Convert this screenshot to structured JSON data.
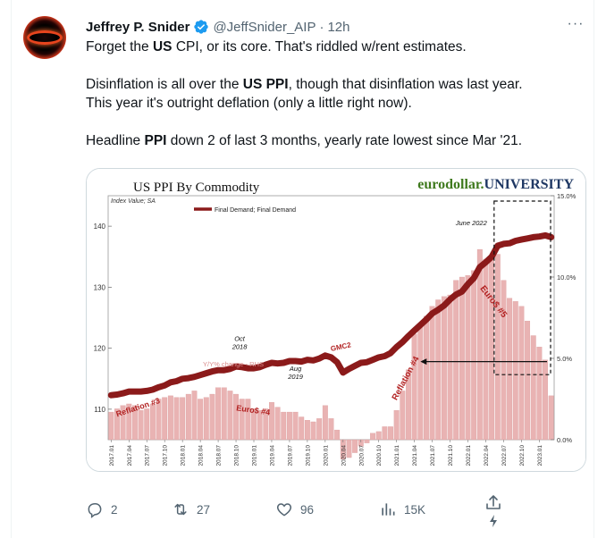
{
  "tweet": {
    "author_name": "Jeffrey P. Snider",
    "handle": "@JeffSnider_AIP",
    "separator": "·",
    "time": "12h",
    "more_label": "···",
    "para1": [
      "Forget the ",
      "US",
      " CPI, or its core. That's riddled w/rent estimates."
    ],
    "para2": [
      "Disinflation is all over the ",
      "US PPI",
      ", though that disinflation was last year.\nThis year it's outright deflation (only a little right now)."
    ],
    "para3": [
      "Headline ",
      "PPI",
      " down 2 of last 3 months, yearly rate lowest since Mar '21."
    ]
  },
  "actions": {
    "replies": "2",
    "retweets": "27",
    "likes": "96",
    "views": "15K"
  },
  "icons": {
    "verified": "verified-badge-icon",
    "reply": "reply-icon",
    "retweet": "retweet-icon",
    "like": "heart-icon",
    "views": "views-bar-chart-icon",
    "share": "share-icon",
    "boost": "lightning-icon",
    "more": "more-dots-icon"
  },
  "colors": {
    "verified_blue": "#1d9bf0",
    "line": "#8b1a1a",
    "bars": "#e9b3b3",
    "label_red": "#b22222",
    "brand_green": "#3f7a1e",
    "brand_navy": "#1f3864"
  },
  "chart_data": {
    "type": "bar",
    "title": "US PPI By Commodity",
    "brand_left": "eurodollar.",
    "brand_right": "UNIVERSITY",
    "y_left_label": "Index Value; SA",
    "left_ticks": [
      "110",
      "120",
      "130",
      "140"
    ],
    "right_ticks": [
      "0.0%",
      "5.0%",
      "10.0%",
      "15.0%"
    ],
    "left_ylim": [
      105,
      145
    ],
    "right_ylim": [
      0,
      15
    ],
    "grid": false,
    "legend_position": "top-left",
    "line_series_name": "Final Demand; Final Demand",
    "bar_series_name": "Y/Y% change - RHS",
    "x_ticks": [
      "2017.01",
      "2017.04",
      "2017.07",
      "2017.10",
      "2018.01",
      "2018.04",
      "2018.07",
      "2018.10",
      "2019.01",
      "2019.04",
      "2019.07",
      "2019.10",
      "2020.01",
      "2020.04",
      "2020.07",
      "2020.10",
      "2021.01",
      "2021.04",
      "2021.07",
      "2021.10",
      "2022.01",
      "2022.04",
      "2022.07",
      "2022.10",
      "2023.01"
    ],
    "x": [
      "2017.01",
      "2017.02",
      "2017.03",
      "2017.04",
      "2017.05",
      "2017.06",
      "2017.07",
      "2017.08",
      "2017.09",
      "2017.10",
      "2017.11",
      "2017.12",
      "2018.01",
      "2018.02",
      "2018.03",
      "2018.04",
      "2018.05",
      "2018.06",
      "2018.07",
      "2018.08",
      "2018.09",
      "2018.10",
      "2018.11",
      "2018.12",
      "2019.01",
      "2019.02",
      "2019.03",
      "2019.04",
      "2019.05",
      "2019.06",
      "2019.07",
      "2019.08",
      "2019.09",
      "2019.10",
      "2019.11",
      "2019.12",
      "2020.01",
      "2020.02",
      "2020.03",
      "2020.04",
      "2020.05",
      "2020.06",
      "2020.07",
      "2020.08",
      "2020.09",
      "2020.10",
      "2020.11",
      "2020.12",
      "2021.01",
      "2021.02",
      "2021.03",
      "2021.04",
      "2021.05",
      "2021.06",
      "2021.07",
      "2021.08",
      "2021.09",
      "2021.10",
      "2021.11",
      "2021.12",
      "2022.01",
      "2022.02",
      "2022.03",
      "2022.04",
      "2022.05",
      "2022.06",
      "2022.07",
      "2022.08",
      "2022.09",
      "2022.10",
      "2022.11",
      "2022.12",
      "2023.01",
      "2023.02",
      "2023.03"
    ],
    "index_values": [
      112.3,
      112.4,
      112.6,
      112.9,
      112.9,
      112.9,
      113.0,
      113.2,
      113.6,
      113.9,
      114.4,
      114.6,
      115.0,
      115.1,
      115.3,
      115.6,
      115.9,
      116.2,
      116.4,
      116.4,
      116.6,
      117.0,
      116.9,
      116.7,
      116.7,
      116.9,
      117.3,
      117.6,
      117.5,
      117.6,
      117.9,
      117.9,
      117.8,
      118.1,
      118.0,
      118.3,
      118.8,
      118.5,
      117.7,
      116.0,
      116.6,
      117.1,
      117.6,
      117.7,
      118.1,
      118.5,
      118.7,
      119.2,
      120.2,
      121.0,
      122.0,
      122.9,
      123.8,
      124.7,
      125.7,
      126.3,
      127.0,
      128.0,
      128.8,
      129.3,
      130.5,
      131.5,
      133.3,
      134.1,
      135.0,
      136.8,
      137.1,
      137.2,
      137.6,
      137.8,
      138.0,
      138.2,
      138.3,
      138.5,
      138.2
    ],
    "yoy_percent": [
      1.7,
      1.9,
      2.1,
      2.2,
      2.1,
      1.8,
      1.9,
      2.2,
      2.5,
      2.6,
      2.7,
      2.6,
      2.6,
      2.8,
      3.0,
      2.5,
      2.6,
      2.8,
      3.2,
      3.2,
      3.0,
      2.8,
      2.5,
      2.5,
      1.9,
      1.8,
      1.9,
      2.3,
      2.0,
      1.7,
      1.7,
      1.7,
      1.4,
      1.2,
      1.1,
      1.3,
      2.1,
      1.3,
      0.6,
      -1.2,
      -1.1,
      -0.8,
      -0.4,
      -0.2,
      0.4,
      0.5,
      0.8,
      0.8,
      1.8,
      3.0,
      4.3,
      6.5,
      7.0,
      7.6,
      8.2,
      8.6,
      8.8,
      8.9,
      9.8,
      10.0,
      10.1,
      10.4,
      11.7,
      11.1,
      11.1,
      11.4,
      9.8,
      8.7,
      8.5,
      8.2,
      7.3,
      6.4,
      5.7,
      4.9,
      2.7
    ],
    "annotations": {
      "june_2022": "June 2022",
      "oct_2018": "Oct\n2018",
      "aug_2019": "Aug\n2019",
      "gmc2": "GMC2",
      "reflation3": "Reflation #3",
      "euro4": "Euro$ #4",
      "reflation4": "Reflation #4",
      "euro5": "Euro$ #5"
    }
  }
}
